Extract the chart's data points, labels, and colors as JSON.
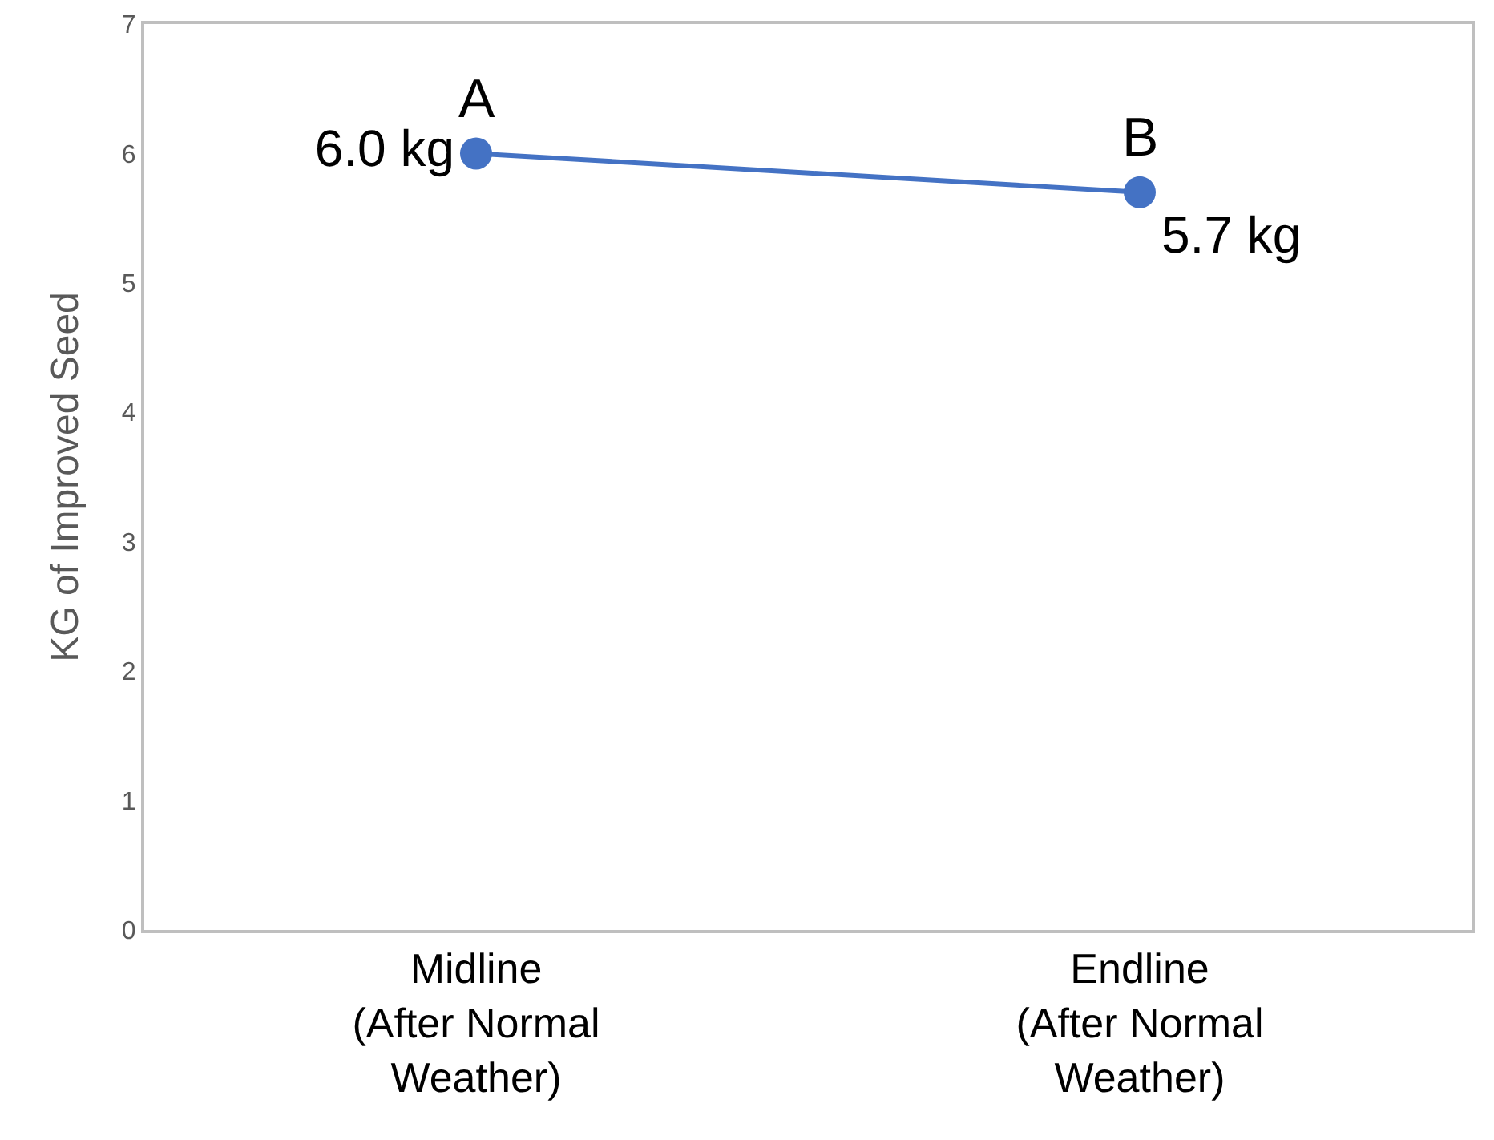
{
  "chart_data": {
    "type": "line",
    "ylabel": "KG of Improved Seed",
    "categories": [
      "Midline (After Normal Weather)",
      "Endline (After Normal Weather)"
    ],
    "series": [
      {
        "color": "#4472c4",
        "values": [
          6.0,
          5.7
        ],
        "value_labels": [
          "6.0 kg",
          "5.7 kg"
        ]
      }
    ],
    "annotations": [
      {
        "text": "A",
        "x": "Midline (After Normal Weather)",
        "y": 6.0
      },
      {
        "text": "B",
        "x": "Endline (After Normal Weather)",
        "y": 5.7
      }
    ],
    "ylim": [
      0,
      7
    ],
    "yticks": [
      0,
      1,
      2,
      3,
      4,
      5,
      6,
      7
    ],
    "marker": "circle",
    "line_style": "solid"
  }
}
